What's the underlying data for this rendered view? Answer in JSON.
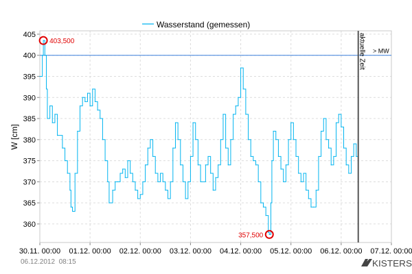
{
  "chart_data": {
    "type": "line",
    "title": "",
    "legend": [
      "Wasserstand (gemessen)"
    ],
    "legend_placement": "top-center",
    "ylabel": "W [cm]",
    "xlabel": "",
    "ylim": [
      355.6,
      405.8
    ],
    "xlim_days": [
      0,
      7
    ],
    "x_ticks": [
      "30.11. 00:00",
      "01.12. 00:00",
      "02.12. 00:00",
      "03.12. 00:00",
      "04.12. 00:00",
      "05.12. 00:00",
      "06.12. 00:00",
      "07.12. 00:00"
    ],
    "y_ticks": [
      360,
      365,
      370,
      375,
      380,
      385,
      390,
      395,
      400,
      405
    ],
    "grid": true,
    "series": [
      {
        "name": "Wasserstand (gemessen)",
        "color": "#00b4f0",
        "x_days": [
          0,
          0.05,
          0.07,
          0.1,
          0.13,
          0.15,
          0.2,
          0.25,
          0.3,
          0.35,
          0.45,
          0.5,
          0.55,
          0.6,
          0.62,
          0.65,
          0.7,
          0.75,
          0.8,
          0.85,
          0.9,
          0.95,
          1.0,
          1.05,
          1.1,
          1.15,
          1.2,
          1.25,
          1.3,
          1.35,
          1.38,
          1.45,
          1.5,
          1.55,
          1.6,
          1.65,
          1.7,
          1.75,
          1.8,
          1.85,
          1.9,
          1.95,
          2.0,
          2.05,
          2.1,
          2.15,
          2.2,
          2.25,
          2.3,
          2.35,
          2.4,
          2.45,
          2.5,
          2.55,
          2.6,
          2.65,
          2.7,
          2.75,
          2.8,
          2.85,
          2.9,
          2.95,
          3.0,
          3.05,
          3.1,
          3.15,
          3.2,
          3.3,
          3.35,
          3.4,
          3.45,
          3.5,
          3.55,
          3.6,
          3.65,
          3.7,
          3.75,
          3.8,
          3.85,
          3.9,
          3.95,
          4.0,
          4.05,
          4.1,
          4.15,
          4.2,
          4.25,
          4.3,
          4.35,
          4.4,
          4.45,
          4.5,
          4.55,
          4.57,
          4.6,
          4.62,
          4.65,
          4.7,
          4.75,
          4.8,
          4.85,
          4.9,
          4.95,
          5.0,
          5.05,
          5.1,
          5.15,
          5.2,
          5.25,
          5.3,
          5.35,
          5.4,
          5.45,
          5.5,
          5.55,
          5.6,
          5.65,
          5.7,
          5.75,
          5.8,
          5.85,
          5.9,
          5.95,
          6.0,
          6.05,
          6.1,
          6.15,
          6.2,
          6.25,
          6.3,
          6.34
        ],
        "values": [
          395,
          400,
          403.5,
          400,
          392,
          385,
          388,
          384,
          386,
          381,
          378,
          375,
          372,
          368,
          364,
          363,
          372,
          382,
          388,
          390,
          389,
          391,
          388,
          392,
          389,
          387,
          385,
          380,
          375,
          370,
          365,
          368,
          370,
          370,
          372,
          373,
          371,
          375,
          372,
          370,
          368,
          366,
          367,
          370,
          374,
          378,
          380,
          376,
          372,
          370,
          372,
          370,
          368,
          366,
          370,
          378,
          384,
          380,
          374,
          370,
          366,
          370,
          376,
          384,
          380,
          374,
          370,
          374,
          376,
          372,
          368,
          371,
          374,
          380,
          386,
          378,
          374,
          380,
          386,
          388,
          390,
          397,
          392,
          386,
          380,
          376,
          375,
          374,
          370,
          365,
          364,
          362,
          358,
          357.5,
          365,
          375,
          382,
          380,
          376,
          373,
          370,
          374,
          380,
          384,
          380,
          376,
          372,
          370,
          372,
          368,
          366,
          364,
          364,
          368,
          376,
          382,
          385,
          380,
          378,
          374,
          376,
          384,
          386,
          383,
          378,
          374,
          372,
          376,
          379,
          376,
          374
        ]
      }
    ],
    "reference_line": {
      "label": "> MW",
      "value": 400,
      "color": "#3a7fdc"
    },
    "current_time": {
      "label": "aktuelle Zeit",
      "x_days": 6.34
    },
    "annotations": [
      {
        "label": "403,500",
        "x_days": 0.07,
        "value": 403.5
      },
      {
        "label": "357,500",
        "x_days": 4.57,
        "value": 357.5
      }
    ]
  },
  "footer": {
    "timestamp": "06.12.2012  08:15",
    "brand": "KISTERS"
  }
}
